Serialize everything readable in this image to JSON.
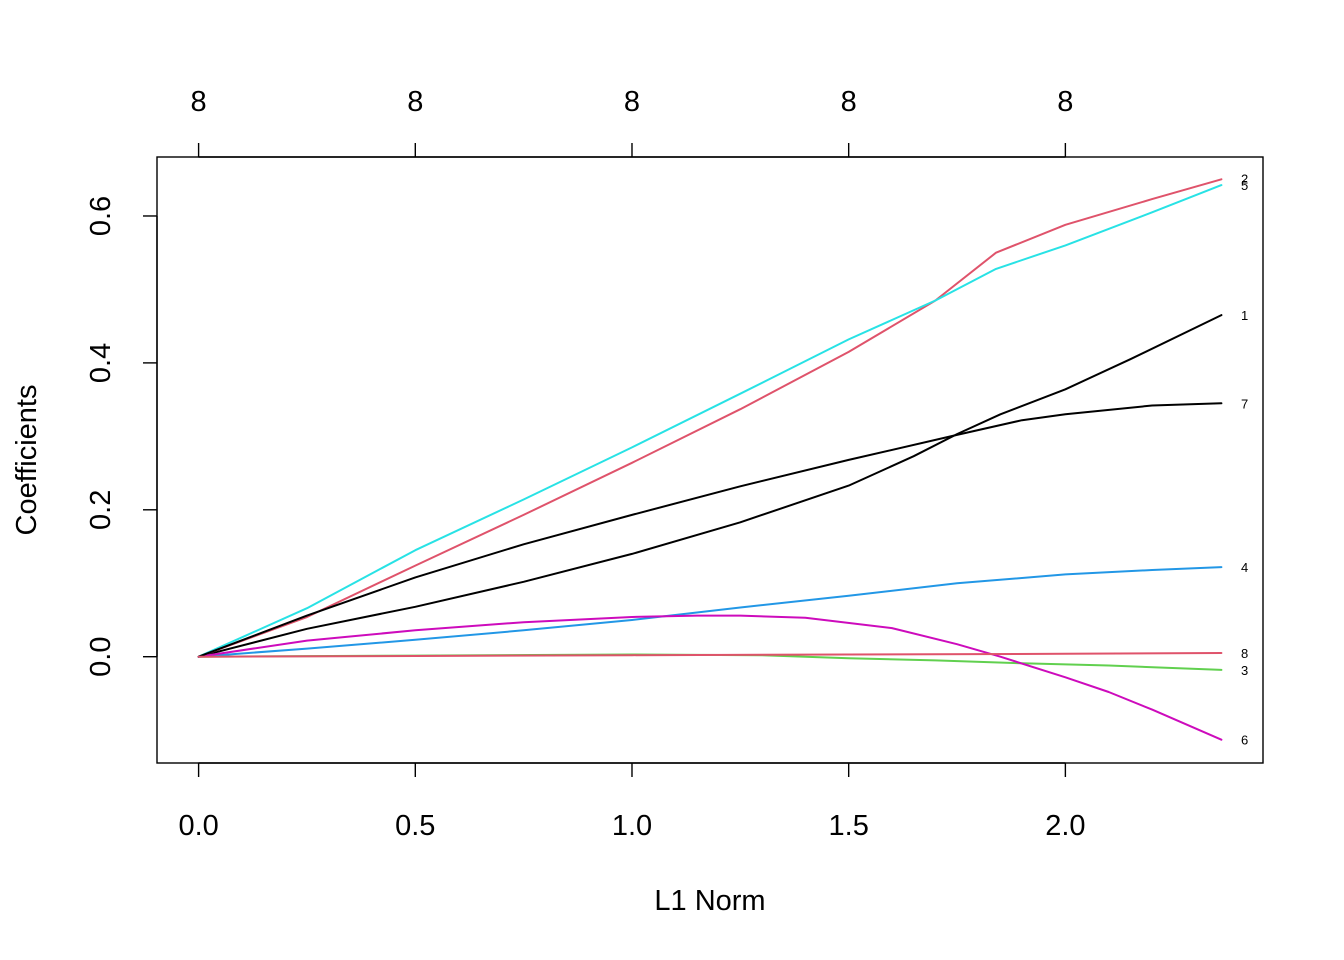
{
  "chart_data": {
    "type": "line",
    "xlabel": "L1 Norm",
    "ylabel": "Coefficients",
    "xlim": [
      -0.096,
      2.456
    ],
    "ylim": [
      -0.1447,
      0.6803
    ],
    "x_ticks": [
      "0.0",
      "0.5",
      "1.0",
      "1.5",
      "2.0"
    ],
    "x_tick_values": [
      0.0,
      0.5,
      1.0,
      1.5,
      2.0
    ],
    "y_ticks": [
      "0.0",
      "0.2",
      "0.4",
      "0.6"
    ],
    "y_tick_values": [
      0.0,
      0.2,
      0.4,
      0.6
    ],
    "top_axis_ticks": [
      "8",
      "8",
      "8",
      "8",
      "8"
    ],
    "top_axis_tick_values": [
      0.0,
      0.5,
      1.0,
      1.5,
      2.0
    ],
    "grid": false,
    "legend": "none",
    "series": [
      {
        "name": "1",
        "color": "#000000",
        "x": [
          0,
          0.25,
          0.5,
          0.75,
          1.0,
          1.25,
          1.5,
          1.65,
          1.75,
          1.85,
          2.0,
          2.15,
          2.36
        ],
        "y": [
          0,
          0.038,
          0.068,
          0.102,
          0.14,
          0.183,
          0.233,
          0.273,
          0.303,
          0.33,
          0.364,
          0.405,
          0.465
        ]
      },
      {
        "name": "2",
        "color": "#DF536B",
        "x": [
          0,
          0.25,
          0.5,
          0.75,
          1.0,
          1.25,
          1.5,
          1.7,
          1.84,
          2.0,
          2.2,
          2.36
        ],
        "y": [
          0,
          0.054,
          0.124,
          0.193,
          0.264,
          0.337,
          0.415,
          0.485,
          0.55,
          0.588,
          0.623,
          0.65
        ]
      },
      {
        "name": "3",
        "color": "#61D04F",
        "x": [
          0,
          0.5,
          1.0,
          1.3,
          1.5,
          1.7,
          1.9,
          2.1,
          2.36
        ],
        "y": [
          0,
          0.0015,
          0.003,
          0.002,
          -0.002,
          -0.005,
          -0.009,
          -0.012,
          -0.018
        ]
      },
      {
        "name": "4",
        "color": "#2297E6",
        "x": [
          0,
          0.25,
          0.5,
          0.75,
          1.0,
          1.25,
          1.5,
          1.75,
          2.0,
          2.2,
          2.36
        ],
        "y": [
          0,
          0.011,
          0.023,
          0.036,
          0.05,
          0.067,
          0.083,
          0.1,
          0.112,
          0.118,
          0.122
        ]
      },
      {
        "name": "5",
        "color": "#28E2E5",
        "x": [
          0,
          0.25,
          0.5,
          0.75,
          1.0,
          1.25,
          1.5,
          1.7,
          1.84,
          2.0,
          2.2,
          2.36
        ],
        "y": [
          0,
          0.066,
          0.145,
          0.214,
          0.285,
          0.358,
          0.432,
          0.485,
          0.528,
          0.56,
          0.605,
          0.642
        ]
      },
      {
        "name": "6",
        "color": "#CD0BBC",
        "x": [
          0,
          0.25,
          0.5,
          0.75,
          1.0,
          1.15,
          1.25,
          1.4,
          1.6,
          1.75,
          1.85,
          2.0,
          2.1,
          2.2,
          2.36
        ],
        "y": [
          0,
          0.022,
          0.036,
          0.047,
          0.054,
          0.056,
          0.056,
          0.053,
          0.039,
          0.017,
          0.0,
          -0.028,
          -0.048,
          -0.072,
          -0.113
        ]
      },
      {
        "name": "7",
        "color": "#000000",
        "x": [
          0,
          0.25,
          0.5,
          0.75,
          1.0,
          1.25,
          1.5,
          1.75,
          1.9,
          2.0,
          2.2,
          2.36
        ],
        "y": [
          0,
          0.056,
          0.108,
          0.153,
          0.193,
          0.232,
          0.268,
          0.302,
          0.322,
          0.33,
          0.342,
          0.345
        ]
      },
      {
        "name": "8",
        "color": "#DF536B",
        "x": [
          0,
          0.5,
          1.0,
          1.5,
          2.0,
          2.36
        ],
        "y": [
          0,
          0.001,
          0.002,
          0.003,
          0.004,
          0.005
        ]
      }
    ],
    "series_labels": [
      {
        "text": "2",
        "y": 0.651
      },
      {
        "text": "5",
        "y": 0.642
      },
      {
        "text": "1",
        "y": 0.465
      },
      {
        "text": "7",
        "y": 0.345
      },
      {
        "text": "4",
        "y": 0.122
      },
      {
        "text": "8",
        "y": 0.005
      },
      {
        "text": "3",
        "y": -0.018
      },
      {
        "text": "6",
        "y": -0.113
      }
    ]
  }
}
